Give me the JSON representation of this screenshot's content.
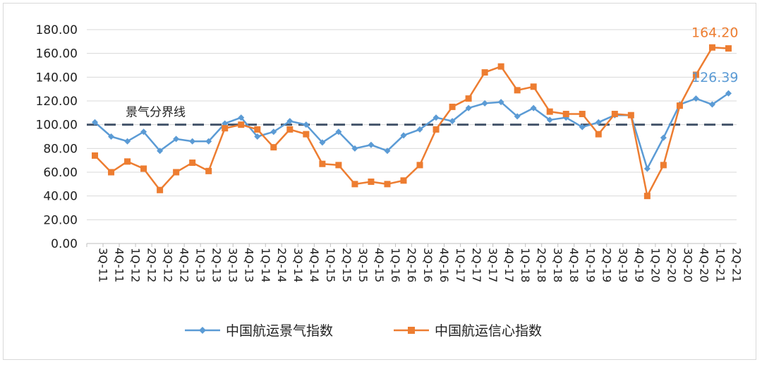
{
  "chart_data": {
    "type": "line",
    "categories": [
      "3Q-11",
      "4Q-11",
      "1Q-12",
      "2Q-12",
      "3Q-12",
      "4Q-12",
      "1Q-13",
      "2Q-13",
      "3Q-13",
      "4Q-13",
      "1Q-14",
      "2Q-14",
      "3Q-14",
      "4Q-14",
      "1Q-15",
      "2Q-15",
      "3Q-15",
      "4Q-15",
      "1Q-16",
      "2Q-16",
      "3Q-16",
      "4Q-16",
      "1Q-17",
      "2Q-17",
      "3Q-17",
      "4Q-17",
      "1Q-18",
      "2Q-18",
      "3Q-18",
      "4Q-18",
      "1Q-19",
      "2Q-19",
      "3Q-19",
      "4Q-19",
      "1Q-20",
      "2Q-20",
      "3Q-20",
      "4Q-20",
      "1Q-21",
      "2Q-21"
    ],
    "series": [
      {
        "name": "中国航运景气指数",
        "color": "#5b9bd5",
        "marker": "diamond",
        "values": [
          102,
          90,
          86,
          94,
          78,
          88,
          86,
          86,
          101,
          106,
          90,
          94,
          103,
          100,
          85,
          94,
          80,
          83,
          78,
          91,
          96,
          106,
          103,
          114,
          118,
          119,
          107,
          114,
          104,
          106,
          98,
          102,
          108,
          108,
          63,
          89,
          117,
          122,
          117,
          126.39
        ]
      },
      {
        "name": "中国航运信心指数",
        "color": "#ed7d31",
        "marker": "square",
        "values": [
          74,
          60,
          69,
          63,
          45,
          60,
          68,
          61,
          97,
          100,
          96,
          81,
          96,
          92,
          67,
          66,
          50,
          52,
          50,
          53,
          66,
          96,
          115,
          122,
          144,
          149,
          129,
          132,
          111,
          109,
          109,
          92,
          109,
          108,
          40,
          66,
          116,
          142,
          165,
          164.2
        ]
      }
    ],
    "ylim": [
      0,
      180
    ],
    "yticks": [
      "0.00",
      "20.00",
      "40.00",
      "60.00",
      "80.00",
      "100.00",
      "120.00",
      "140.00",
      "160.00",
      "180.00"
    ],
    "reference_line": {
      "value": 100,
      "label": "景气分界线"
    },
    "annotations": [
      {
        "series": 0,
        "index": 39,
        "text": "126.39"
      },
      {
        "series": 1,
        "index": 39,
        "text": "164.20"
      }
    ],
    "grid": true,
    "legend": "bottom"
  }
}
